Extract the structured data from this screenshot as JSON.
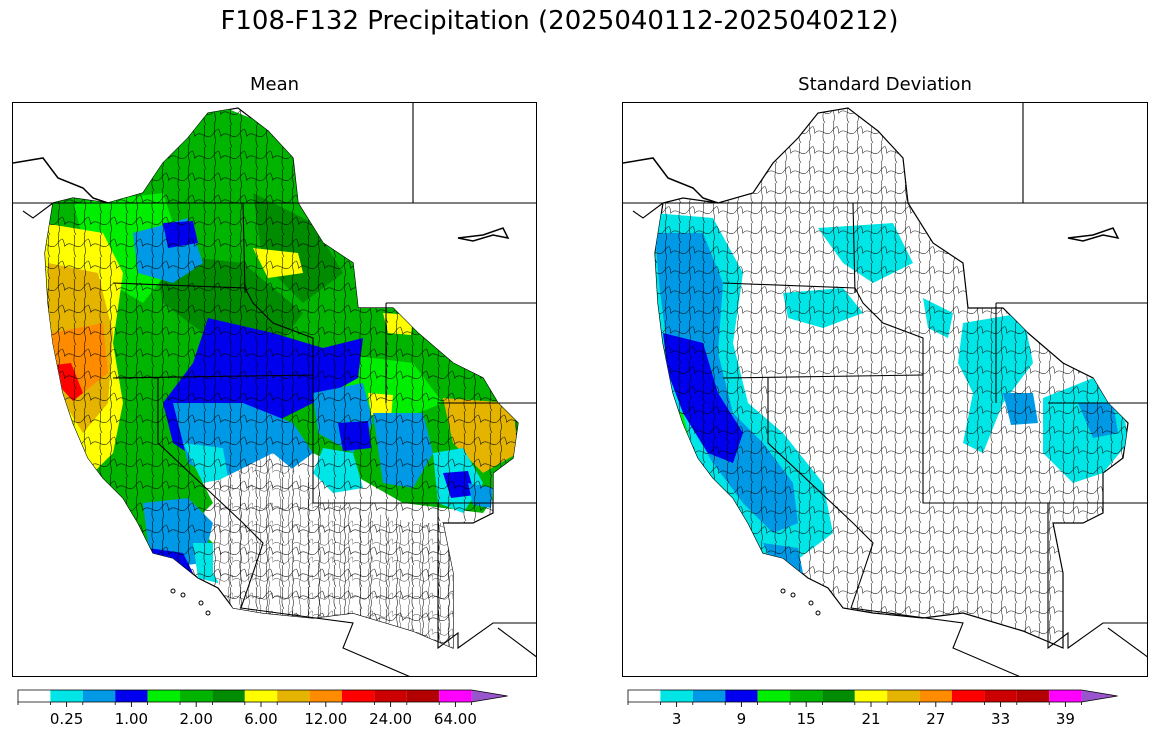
{
  "title": "F108-F132 Precipitation (2025040112-2025040212)",
  "panels": [
    {
      "title": "Mean"
    },
    {
      "title": "Standard Deviation"
    }
  ],
  "colormap": [
    "#ffffff",
    "#00e5e5",
    "#0099e6",
    "#0000ee",
    "#00ee00",
    "#00b400",
    "#008b00",
    "#ffff00",
    "#e5b400",
    "#ff8c00",
    "#ff0000",
    "#cc0000",
    "#b30000",
    "#ff00ff",
    "#9955cc"
  ],
  "colorbars": [
    {
      "tick_labels": [
        "0.25",
        "1.00",
        "2.00",
        "6.00",
        "12.00",
        "24.00",
        "64.00"
      ],
      "label_bins": [
        1,
        3,
        5,
        7,
        9,
        11,
        13
      ]
    },
    {
      "tick_labels": [
        "3",
        "9",
        "15",
        "21",
        "27",
        "33",
        "39"
      ],
      "label_bins": [
        1,
        3,
        5,
        7,
        9,
        11,
        13
      ]
    }
  ]
}
